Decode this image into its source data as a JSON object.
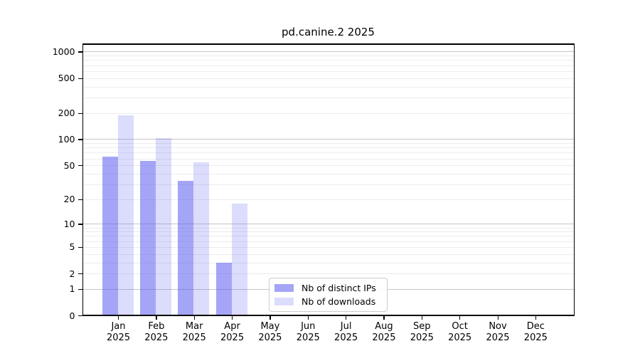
{
  "chart_data": {
    "type": "bar",
    "title": "pd.canine.2 2025",
    "categories": [
      "Jan",
      "Feb",
      "Mar",
      "Apr",
      "May",
      "Jun",
      "Jul",
      "Aug",
      "Sep",
      "Oct",
      "Nov",
      "Dec"
    ],
    "x_label_line2": "2025",
    "series": [
      {
        "name": "Nb of distinct IPs",
        "color": "rgba(95,95,240,0.56)",
        "values": [
          63,
          57,
          33,
          3,
          0,
          0,
          0,
          0,
          0,
          0,
          0,
          0
        ]
      },
      {
        "name": "Nb of downloads",
        "color": "rgba(95,95,240,0.22)",
        "values": [
          190,
          103,
          55,
          18,
          0,
          0,
          0,
          0,
          0,
          0,
          0,
          0
        ]
      }
    ],
    "y_scale": "log1p",
    "y_ticks": [
      0,
      1,
      2,
      5,
      10,
      20,
      50,
      100,
      200,
      500,
      1000
    ],
    "ylim": [
      0,
      1250
    ],
    "grid": true,
    "legend_position": "lower center inside",
    "colors": {
      "background": "#ffffff",
      "major_grid": "#c6c6c6",
      "minor_grid": "#ececec",
      "spine": "#000000",
      "bar_dark": "rgba(95,95,240,0.56)",
      "bar_light": "rgba(95,95,240,0.22)"
    }
  }
}
